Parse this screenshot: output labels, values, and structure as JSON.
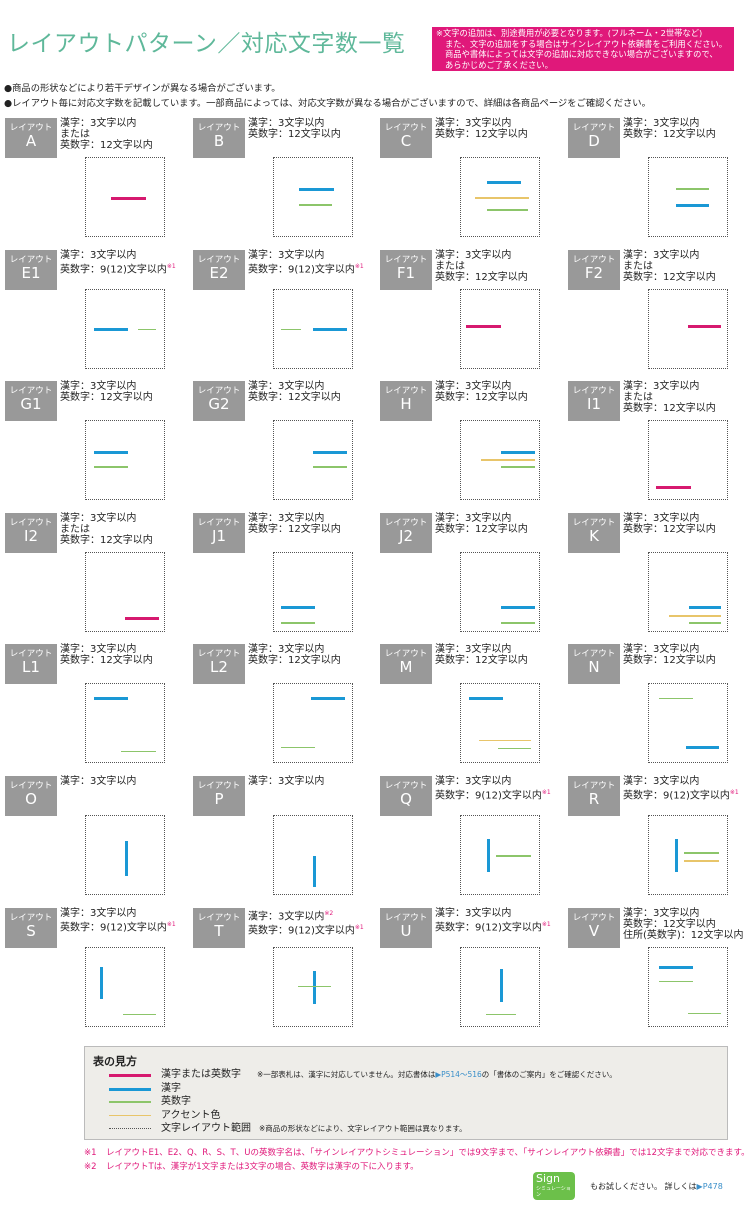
{
  "header": {
    "title": "レイアウトパターン／対応文字数一覧",
    "notice": [
      "※文字の追加は、別途費用が必要となります。(フルネーム・2世帯など)",
      "また、文字の追加をする場合はサインレイアウト依頼書をご利用ください。",
      "商品や書体によっては文字の追加に対応できない場合がございますので、",
      "あらかじめご了承ください。"
    ],
    "bullets": [
      "●商品の形状などにより若干デザインが異なる場合がございます。",
      "●レイアウト毎に対応文字数を記載しています。一部商品によっては、対応文字数が異なる場合がございますので、詳細は各商品ページをご確認ください。"
    ]
  },
  "badge_prefix": "レイアウト",
  "colors": {
    "mix": "#d6196f",
    "kanji": "#1a98d5",
    "eisu": "#8cc56a",
    "accent": "#e8c56a",
    "badge": "#999999",
    "title": "#5fb89a",
    "notice_bg": "#e0187a"
  },
  "layouts": [
    {
      "id": "A",
      "info": [
        {
          "t": "漢字：3文字以内"
        },
        {
          "t": "または"
        },
        {
          "t": "英数字：12文字以内"
        }
      ]
    },
    {
      "id": "B",
      "info": [
        {
          "t": "漢字：3文字以内"
        },
        {
          "t": "英数字：12文字以内"
        }
      ]
    },
    {
      "id": "C",
      "info": [
        {
          "t": "漢字：3文字以内"
        },
        {
          "t": "英数字：12文字以内"
        }
      ]
    },
    {
      "id": "D",
      "info": [
        {
          "t": "漢字：3文字以内"
        },
        {
          "t": "英数字：12文字以内"
        }
      ]
    },
    {
      "id": "E1",
      "info": [
        {
          "t": "漢字：3文字以内"
        },
        {
          "t": "英数字：9(12)文字以内",
          "n": "※1"
        }
      ]
    },
    {
      "id": "E2",
      "info": [
        {
          "t": "漢字：3文字以内"
        },
        {
          "t": "英数字：9(12)文字以内",
          "n": "※1"
        }
      ]
    },
    {
      "id": "F1",
      "info": [
        {
          "t": "漢字：3文字以内"
        },
        {
          "t": "または"
        },
        {
          "t": "英数字：12文字以内"
        }
      ]
    },
    {
      "id": "F2",
      "info": [
        {
          "t": "漢字：3文字以内"
        },
        {
          "t": "または"
        },
        {
          "t": "英数字：12文字以内"
        }
      ]
    },
    {
      "id": "G1",
      "info": [
        {
          "t": "漢字：3文字以内"
        },
        {
          "t": "英数字：12文字以内"
        }
      ]
    },
    {
      "id": "G2",
      "info": [
        {
          "t": "漢字：3文字以内"
        },
        {
          "t": "英数字：12文字以内"
        }
      ]
    },
    {
      "id": "H",
      "info": [
        {
          "t": "漢字：3文字以内"
        },
        {
          "t": "英数字：12文字以内"
        }
      ]
    },
    {
      "id": "I1",
      "info": [
        {
          "t": "漢字：3文字以内"
        },
        {
          "t": "または"
        },
        {
          "t": "英数字：12文字以内"
        }
      ]
    },
    {
      "id": "I2",
      "info": [
        {
          "t": "漢字：3文字以内"
        },
        {
          "t": "または"
        },
        {
          "t": "英数字：12文字以内"
        }
      ]
    },
    {
      "id": "J1",
      "info": [
        {
          "t": "漢字：3文字以内"
        },
        {
          "t": "英数字：12文字以内"
        }
      ]
    },
    {
      "id": "J2",
      "info": [
        {
          "t": "漢字：3文字以内"
        },
        {
          "t": "英数字：12文字以内"
        }
      ]
    },
    {
      "id": "K",
      "info": [
        {
          "t": "漢字：3文字以内"
        },
        {
          "t": "英数字：12文字以内"
        }
      ]
    },
    {
      "id": "L1",
      "info": [
        {
          "t": "漢字：3文字以内"
        },
        {
          "t": "英数字：12文字以内"
        }
      ]
    },
    {
      "id": "L2",
      "info": [
        {
          "t": "漢字：3文字以内"
        },
        {
          "t": "英数字：12文字以内"
        }
      ]
    },
    {
      "id": "M",
      "info": [
        {
          "t": "漢字：3文字以内"
        },
        {
          "t": "英数字：12文字以内"
        }
      ]
    },
    {
      "id": "N",
      "info": [
        {
          "t": "漢字：3文字以内"
        },
        {
          "t": "英数字：12文字以内"
        }
      ]
    },
    {
      "id": "O",
      "info": [
        {
          "t": "漢字：3文字以内"
        }
      ]
    },
    {
      "id": "P",
      "info": [
        {
          "t": "漢字：3文字以内"
        }
      ]
    },
    {
      "id": "Q",
      "info": [
        {
          "t": "漢字：3文字以内"
        },
        {
          "t": "英数字：9(12)文字以内",
          "n": "※1"
        }
      ]
    },
    {
      "id": "R",
      "info": [
        {
          "t": "漢字：3文字以内"
        },
        {
          "t": "英数字：9(12)文字以内",
          "n": "※1"
        }
      ]
    },
    {
      "id": "S",
      "info": [
        {
          "t": "漢字：3文字以内"
        },
        {
          "t": "英数字：9(12)文字以内",
          "n": "※1"
        }
      ]
    },
    {
      "id": "T",
      "info": [
        {
          "t": "漢字：3文字以内",
          "n": "※2"
        },
        {
          "t": "英数字：9(12)文字以内",
          "n": "※1"
        }
      ]
    },
    {
      "id": "U",
      "info": [
        {
          "t": "漢字：3文字以内"
        },
        {
          "t": "英数字：9(12)文字以内",
          "n": "※1"
        }
      ]
    },
    {
      "id": "V",
      "info": [
        {
          "t": "漢字：3文字以内"
        },
        {
          "t": "英数字：12文字以内"
        },
        {
          "t": "住所(英数字)：12文字以内"
        }
      ]
    }
  ],
  "legend": {
    "title": "表の見方",
    "items": [
      {
        "type": "mix",
        "label": "漢字または英数字",
        "note_pre": "※一部表札は、漢字に対応していません。対応書体は",
        "note_ref": "▶P514～516",
        "note_post": "の「書体のご案内」をご確認ください。"
      },
      {
        "type": "kanji",
        "label": "漢字"
      },
      {
        "type": "eisu",
        "label": "英数字"
      },
      {
        "type": "accent",
        "label": "アクセント色"
      },
      {
        "type": "range",
        "label": "文字レイアウト範囲",
        "note_pre": "※商品の形状などにより、文字レイアウト範囲は異なります。"
      }
    ]
  },
  "footnotes": [
    {
      "mark": "※1",
      "text": "レイアウトE1、E2、Q、R、S、T、Uの英数字名は、「サインレイアウトシミュレーション」では9文字まで、「サインレイアウト依頼書」では12文字まで対応できます。"
    },
    {
      "mark": "※2",
      "text": "レイアウトTは、漢字が1文字または3文字の場合、英数字は漢字の下に入ります。"
    }
  ],
  "promo": {
    "logo": "Sign",
    "logo_sub": "シミュレーション",
    "text": "もお試しください。 詳しくは",
    "ref": "▶P478"
  }
}
